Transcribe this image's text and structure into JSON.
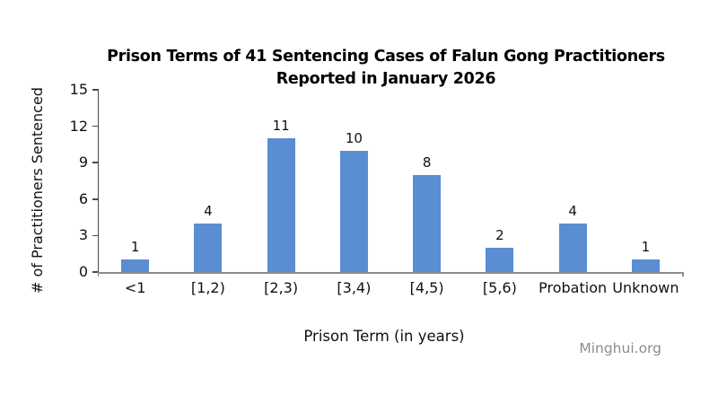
{
  "chart_data": {
    "type": "bar",
    "title_line1": "Prison Terms of 41 Sentencing Cases of Falun Gong Practitioners",
    "title_line2": "Reported in January 2026",
    "categories": [
      "<1",
      "[1,2)",
      "[2,3)",
      "[3,4)",
      "[4,5)",
      "[5,6)",
      "Probation",
      "Unknown"
    ],
    "values": [
      1,
      4,
      11,
      10,
      8,
      2,
      4,
      1
    ],
    "xlabel": "Prison Term (in years)",
    "ylabel": "# of Practitioners Sentenced",
    "yticks": [
      0,
      3,
      6,
      9,
      12,
      15
    ],
    "ylim": [
      0,
      15
    ],
    "bar_color": "#5B8DD3",
    "grid": false,
    "legend_position": "none",
    "value_labels_shown": true
  },
  "watermark": {
    "label": "Minghui.org",
    "color": "#8c8c8c"
  }
}
